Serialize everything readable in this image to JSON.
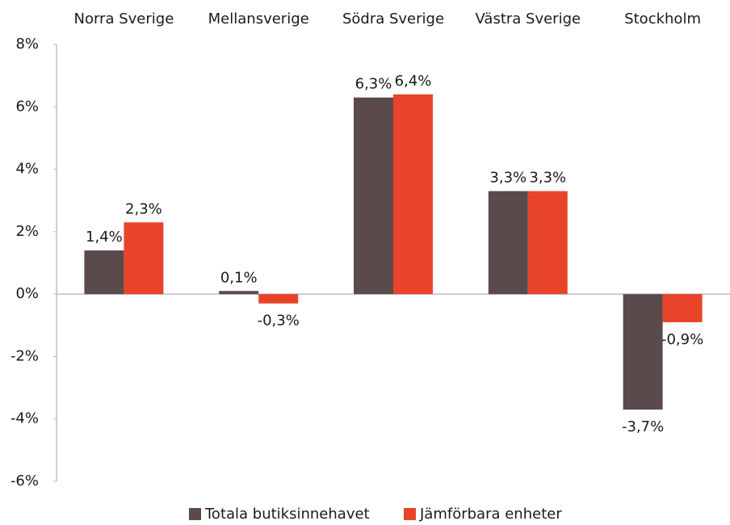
{
  "chart_data": {
    "type": "bar",
    "categories": [
      "Norra Sverige",
      "Mellansverige",
      "Södra Sverige",
      "Västra Sverige",
      "Stockholm"
    ],
    "series": [
      {
        "name": "Totala butiksinnehavet",
        "color": "#5a4a4c",
        "values": [
          1.4,
          0.1,
          6.3,
          3.3,
          -3.7
        ],
        "value_labels": [
          "1,4%",
          "0,1%",
          "6,3%",
          "3,3%",
          "-3,7%"
        ]
      },
      {
        "name": "Jämförbara enheter",
        "color": "#e8442a",
        "values": [
          2.3,
          -0.3,
          6.4,
          3.3,
          -0.9
        ],
        "value_labels": [
          "2,3%",
          "-0,3%",
          "6,4%",
          "3,3%",
          "-0,9%"
        ]
      }
    ],
    "ylim": [
      -6,
      8
    ],
    "yticks": [
      {
        "value": -6,
        "label": "-6%"
      },
      {
        "value": -4,
        "label": "-4%"
      },
      {
        "value": -2,
        "label": "-2%"
      },
      {
        "value": 0,
        "label": "0%"
      },
      {
        "value": 2,
        "label": "2%"
      },
      {
        "value": 4,
        "label": "4%"
      },
      {
        "value": 6,
        "label": "6%"
      },
      {
        "value": 8,
        "label": "8%"
      }
    ],
    "legend": "bottom"
  }
}
